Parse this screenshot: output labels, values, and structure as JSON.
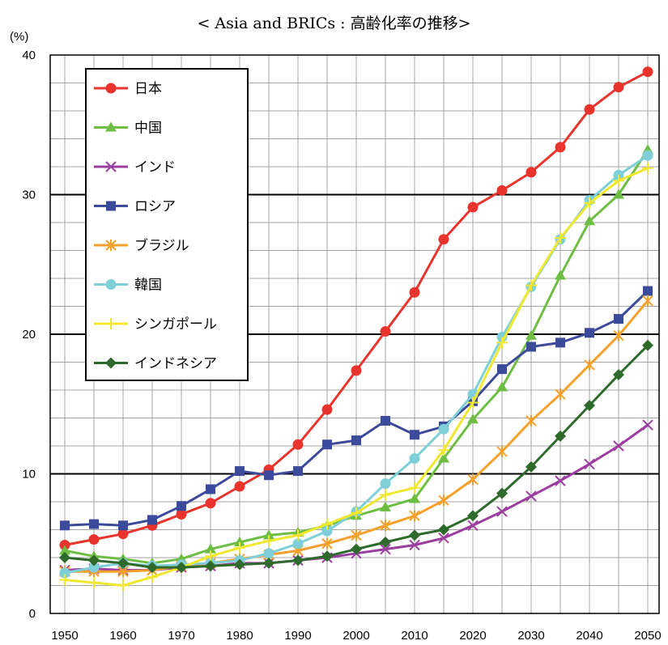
{
  "chart_data": {
    "type": "line",
    "title": "< Asia and BRICs : 高齢化率の推移>",
    "ylabel": "(%)",
    "xlim": [
      1950,
      2050
    ],
    "ylim": [
      0,
      40
    ],
    "x_ticks": [
      "1950",
      "1960",
      "1970",
      "1980",
      "1990",
      "2000",
      "2010",
      "2020",
      "2030",
      "2040",
      "2050"
    ],
    "y_ticks": [
      "0",
      "10",
      "20",
      "30",
      "40"
    ],
    "grid": true,
    "legend_placement": "top-left",
    "x": [
      1950,
      1955,
      1960,
      1965,
      1970,
      1975,
      1980,
      1985,
      1990,
      1995,
      2000,
      2005,
      2010,
      2015,
      2020,
      2025,
      2030,
      2035,
      2040,
      2045,
      2050
    ],
    "series": [
      {
        "name": "日本",
        "color": "#e8342c",
        "marker": "circle",
        "values": [
          4.9,
          5.3,
          5.7,
          6.3,
          7.1,
          7.9,
          9.1,
          10.3,
          12.1,
          14.6,
          17.4,
          20.2,
          23.0,
          26.8,
          29.1,
          30.3,
          31.6,
          33.4,
          36.1,
          37.7,
          38.8
        ]
      },
      {
        "name": "中国",
        "color": "#6fbe44",
        "marker": "triangle",
        "values": [
          4.5,
          4.1,
          3.9,
          3.6,
          3.9,
          4.6,
          5.1,
          5.6,
          5.8,
          6.3,
          7.0,
          7.6,
          8.2,
          11.1,
          13.9,
          16.2,
          19.9,
          24.2,
          28.1,
          30.0,
          33.2
        ]
      },
      {
        "name": "インド",
        "color": "#9b3ea0",
        "marker": "x",
        "values": [
          3.1,
          3.2,
          3.1,
          3.1,
          3.3,
          3.4,
          3.6,
          3.6,
          3.8,
          4.0,
          4.3,
          4.6,
          4.9,
          5.4,
          6.3,
          7.3,
          8.4,
          9.5,
          10.7,
          12.0,
          13.5
        ]
      },
      {
        "name": "ロシア",
        "color": "#3c4a9c",
        "marker": "square",
        "values": [
          6.3,
          6.4,
          6.3,
          6.7,
          7.7,
          8.9,
          10.2,
          9.9,
          10.2,
          12.1,
          12.4,
          13.8,
          12.8,
          13.4,
          15.2,
          17.5,
          19.1,
          19.4,
          20.1,
          21.1,
          23.1
        ]
      },
      {
        "name": "ブラジル",
        "color": "#f5a02a",
        "marker": "asterisk",
        "values": [
          3.0,
          3.0,
          3.0,
          3.1,
          3.4,
          3.6,
          3.9,
          4.2,
          4.5,
          5.0,
          5.6,
          6.3,
          7.0,
          8.1,
          9.6,
          11.6,
          13.8,
          15.7,
          17.8,
          19.9,
          22.4
        ]
      },
      {
        "name": "韓国",
        "color": "#7ecfd8",
        "marker": "circle",
        "values": [
          2.9,
          3.3,
          3.6,
          3.4,
          3.5,
          3.6,
          3.8,
          4.3,
          5.0,
          5.9,
          7.3,
          9.3,
          11.1,
          13.2,
          15.7,
          19.8,
          23.4,
          26.8,
          29.6,
          31.4,
          32.8
        ]
      },
      {
        "name": "シンガポール",
        "color": "#f0e830",
        "marker": "plus",
        "values": [
          2.4,
          2.2,
          2.0,
          2.6,
          3.3,
          4.1,
          4.7,
          5.2,
          5.6,
          6.4,
          7.2,
          8.5,
          9.0,
          11.7,
          15.1,
          19.4,
          23.5,
          26.9,
          29.4,
          31.0,
          31.9
        ]
      },
      {
        "name": "インドネシア",
        "color": "#2e6a2b",
        "marker": "diamond",
        "values": [
          4.0,
          3.8,
          3.6,
          3.3,
          3.3,
          3.4,
          3.5,
          3.6,
          3.8,
          4.1,
          4.6,
          5.1,
          5.6,
          6.0,
          7.0,
          8.6,
          10.5,
          12.7,
          14.9,
          17.1,
          19.2
        ]
      }
    ]
  }
}
